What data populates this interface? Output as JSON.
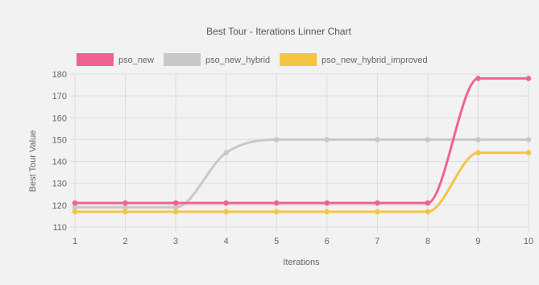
{
  "chart_data": {
    "type": "line",
    "title": "Best Tour - Iterations Linner Chart",
    "xlabel": "Iterations",
    "ylabel": "Best Tour Value",
    "x": [
      1,
      2,
      3,
      4,
      5,
      6,
      7,
      8,
      9,
      10
    ],
    "xlim": [
      1,
      10
    ],
    "ylim": [
      110,
      180
    ],
    "yticks": [
      110,
      120,
      130,
      140,
      150,
      160,
      170,
      180
    ],
    "grid": true,
    "legend_position": "top-left",
    "series": [
      {
        "name": "pso_new",
        "color": "#f06292",
        "values": [
          121,
          121,
          121,
          121,
          121,
          121,
          121,
          121,
          178,
          178
        ]
      },
      {
        "name": "pso_new_hybrid",
        "color": "#c8c8c8",
        "values": [
          119,
          119,
          119,
          144,
          150,
          150,
          150,
          150,
          150,
          150
        ]
      },
      {
        "name": "pso_new_hybrid_improved",
        "color": "#f5c542",
        "values": [
          117,
          117,
          117,
          117,
          117,
          117,
          117,
          117,
          144,
          144
        ]
      }
    ]
  }
}
